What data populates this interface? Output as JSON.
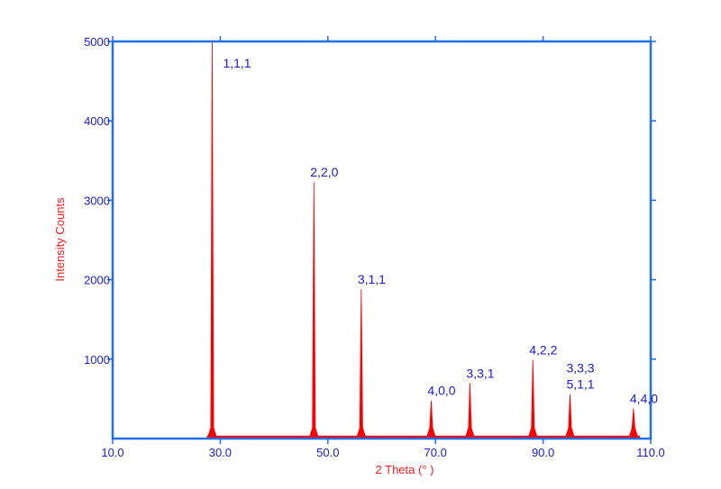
{
  "colors": {
    "axis": "#1e6fe8",
    "tick_text": "#1a1ad8",
    "peak_fill": "#ff0000",
    "peak_label": "#1a1ad8",
    "axis_title": "#ff1a1a",
    "background": "#ffffff"
  },
  "chart_data": {
    "type": "area",
    "title": "",
    "xlabel": "2 Theta (° )",
    "ylabel": "Intensity Counts",
    "xlim": [
      10.0,
      110.0
    ],
    "ylim": [
      0,
      5000
    ],
    "x_ticks": [
      10.0,
      30.0,
      50.0,
      70.0,
      90.0,
      110.0
    ],
    "x_tick_labels": [
      "10.0",
      "30.0",
      "50.0",
      "70.0",
      "90.0",
      "110.0"
    ],
    "y_ticks": [
      1000,
      2000,
      3000,
      4000,
      5000
    ],
    "y_tick_labels": [
      "1000",
      "2000",
      "3000",
      "4000",
      "5000"
    ],
    "grid": false,
    "baseline": 25,
    "peaks": [
      {
        "label": "1,1,1",
        "two_theta": 28.5,
        "intensity": 5000
      },
      {
        "label": "2,2,0",
        "two_theta": 47.4,
        "intensity": 3230
      },
      {
        "label": "3,1,1",
        "two_theta": 56.2,
        "intensity": 1880
      },
      {
        "label": "4,0,0",
        "two_theta": 69.2,
        "intensity": 480
      },
      {
        "label": "3,3,1",
        "two_theta": 76.4,
        "intensity": 700
      },
      {
        "label": "4,2,2",
        "two_theta": 88.1,
        "intensity": 990
      },
      {
        "label": "3,3,3\n5,1,1",
        "two_theta": 95.0,
        "intensity": 560
      },
      {
        "label": "4,4,0",
        "two_theta": 106.8,
        "intensity": 380
      }
    ]
  }
}
